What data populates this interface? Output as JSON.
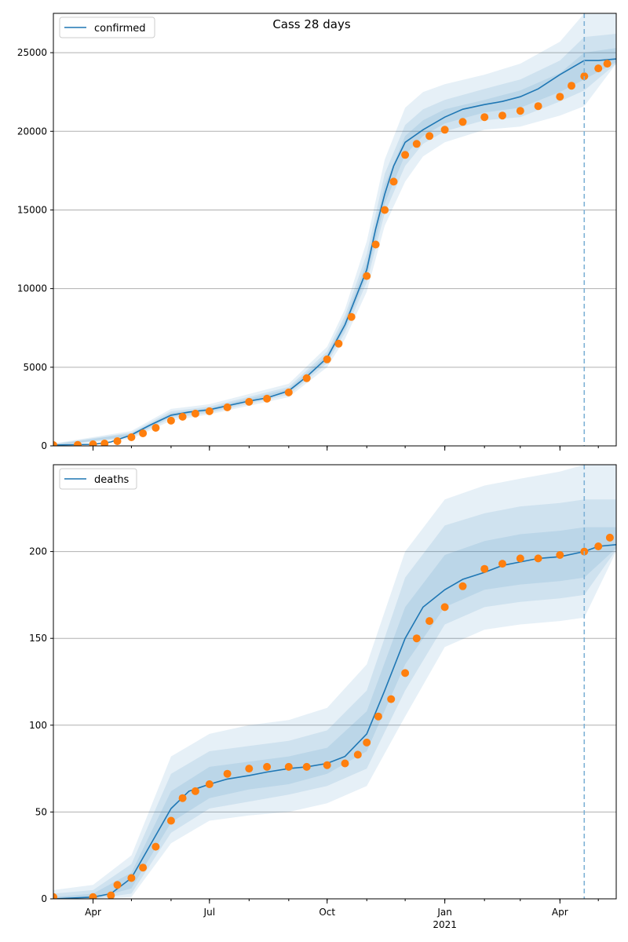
{
  "figure": {
    "title": "Cass 28 days"
  },
  "colors": {
    "model_line": "#1f77b4",
    "observed": "#ff7f0e",
    "band": "#1f77b4",
    "forecast_line": "#7fb2d6",
    "grid": "#b0b0b0"
  },
  "x_axis": {
    "start": "2020-03-01",
    "end": "2021-05-15",
    "ticks": [
      {
        "date": "2020-04-01",
        "label": "Apr",
        "sub": ""
      },
      {
        "date": "2020-07-01",
        "label": "Jul",
        "sub": ""
      },
      {
        "date": "2020-10-01",
        "label": "Oct",
        "sub": ""
      },
      {
        "date": "2021-01-01",
        "label": "Jan",
        "sub": "2021"
      },
      {
        "date": "2021-04-01",
        "label": "Apr",
        "sub": ""
      }
    ],
    "forecast_start": "2021-04-20"
  },
  "chart_data": [
    {
      "type": "line",
      "legend": "confirmed",
      "legend_loc": "upper left",
      "ylim": [
        0,
        27500
      ],
      "yticks": [
        0,
        5000,
        10000,
        15000,
        20000,
        25000
      ],
      "grid": "y",
      "model": {
        "x": [
          "2020-03-01",
          "2020-04-01",
          "2020-04-15",
          "2020-05-01",
          "2020-05-15",
          "2020-06-01",
          "2020-06-15",
          "2020-07-01",
          "2020-07-15",
          "2020-08-01",
          "2020-08-15",
          "2020-09-01",
          "2020-09-15",
          "2020-10-01",
          "2020-10-15",
          "2020-11-01",
          "2020-11-08",
          "2020-11-15",
          "2020-11-22",
          "2020-12-01",
          "2020-12-15",
          "2021-01-01",
          "2021-01-15",
          "2021-02-01",
          "2021-02-15",
          "2021-03-01",
          "2021-03-15",
          "2021-04-01",
          "2021-04-20"
        ],
        "y": [
          50,
          100,
          250,
          700,
          1300,
          1950,
          2150,
          2300,
          2550,
          2850,
          3050,
          3500,
          4400,
          5600,
          7700,
          11200,
          13800,
          16000,
          17800,
          19300,
          20100,
          20900,
          21400,
          21700,
          21900,
          22200,
          22700,
          23600,
          24500
        ]
      },
      "forecast": {
        "x": [
          "2021-04-20",
          "2021-05-01",
          "2021-05-15"
        ],
        "y": [
          24500,
          24500,
          24600
        ]
      },
      "bands": [
        {
          "level": "outer",
          "x": [
            "2020-03-01",
            "2020-05-01",
            "2020-06-01",
            "2020-07-01",
            "2020-09-01",
            "2020-10-01",
            "2020-10-15",
            "2020-11-01",
            "2020-11-15",
            "2020-12-01",
            "2020-12-15",
            "2021-01-01",
            "2021-02-01",
            "2021-03-01",
            "2021-04-01",
            "2021-04-20",
            "2021-05-15"
          ],
          "lower": [
            0,
            450,
            1600,
            2000,
            3100,
            5000,
            6800,
            9800,
            14000,
            16800,
            18400,
            19300,
            20100,
            20300,
            21000,
            21600,
            24300
          ],
          "upper": [
            150,
            950,
            2350,
            2650,
            3950,
            6300,
            8700,
            13000,
            18200,
            21500,
            22500,
            23000,
            23600,
            24300,
            25700,
            27500,
            27500
          ]
        },
        {
          "level": "middle",
          "x": [
            "2020-03-01",
            "2020-05-01",
            "2020-06-01",
            "2020-07-01",
            "2020-09-01",
            "2020-10-01",
            "2020-10-15",
            "2020-11-01",
            "2020-11-15",
            "2020-12-01",
            "2020-12-15",
            "2021-01-01",
            "2021-02-01",
            "2021-03-01",
            "2021-04-01",
            "2021-04-20",
            "2021-05-15"
          ],
          "lower": [
            0,
            550,
            1750,
            2100,
            3250,
            5250,
            7200,
            10400,
            14800,
            17800,
            19200,
            20000,
            20700,
            20900,
            21900,
            22600,
            24300
          ],
          "upper": [
            120,
            850,
            2200,
            2500,
            3750,
            6000,
            8300,
            12200,
            17300,
            20400,
            21400,
            22000,
            22700,
            23300,
            24500,
            26000,
            26200
          ]
        },
        {
          "level": "inner",
          "x": [
            "2020-03-01",
            "2020-05-01",
            "2020-06-01",
            "2020-07-01",
            "2020-09-01",
            "2020-10-01",
            "2020-10-15",
            "2020-11-01",
            "2020-11-15",
            "2020-12-01",
            "2020-12-15",
            "2021-01-01",
            "2021-02-01",
            "2021-03-01",
            "2021-04-01",
            "2021-04-20",
            "2021-05-15"
          ],
          "lower": [
            20,
            620,
            1850,
            2200,
            3380,
            5420,
            7450,
            10800,
            15400,
            18500,
            19700,
            20500,
            21200,
            21500,
            22500,
            23300,
            24400
          ],
          "upper": [
            90,
            780,
            2080,
            2400,
            3620,
            5800,
            8000,
            11700,
            16600,
            19700,
            20700,
            21400,
            22000,
            22600,
            23700,
            25000,
            25300
          ]
        }
      ],
      "observed": {
        "x": [
          "2020-03-01",
          "2020-03-20",
          "2020-04-01",
          "2020-04-10",
          "2020-04-20",
          "2020-05-01",
          "2020-05-10",
          "2020-05-20",
          "2020-06-01",
          "2020-06-10",
          "2020-06-20",
          "2020-07-01",
          "2020-07-15",
          "2020-08-01",
          "2020-08-15",
          "2020-09-01",
          "2020-09-15",
          "2020-10-01",
          "2020-10-10",
          "2020-10-20",
          "2020-11-01",
          "2020-11-08",
          "2020-11-15",
          "2020-11-22",
          "2020-12-01",
          "2020-12-10",
          "2020-12-20",
          "2021-01-01",
          "2021-01-15",
          "2021-02-01",
          "2021-02-15",
          "2021-03-01",
          "2021-03-15",
          "2021-04-01",
          "2021-04-10",
          "2021-04-20",
          "2021-05-01",
          "2021-05-08"
        ],
        "y": [
          50,
          60,
          100,
          150,
          300,
          550,
          800,
          1150,
          1600,
          1850,
          2050,
          2200,
          2450,
          2800,
          3000,
          3400,
          4300,
          5500,
          6500,
          8200,
          10800,
          12800,
          15000,
          16800,
          18500,
          19200,
          19700,
          20100,
          20600,
          20900,
          21000,
          21300,
          21600,
          22200,
          22900,
          23500,
          24000,
          24300
        ]
      }
    },
    {
      "type": "line",
      "legend": "deaths",
      "legend_loc": "upper left",
      "ylim": [
        0,
        250
      ],
      "yticks": [
        0,
        50,
        100,
        150,
        200
      ],
      "grid": "y",
      "model": {
        "x": [
          "2020-03-01",
          "2020-04-01",
          "2020-04-15",
          "2020-05-01",
          "2020-05-15",
          "2020-06-01",
          "2020-06-15",
          "2020-07-01",
          "2020-07-15",
          "2020-08-01",
          "2020-08-15",
          "2020-09-01",
          "2020-09-15",
          "2020-10-01",
          "2020-10-15",
          "2020-11-01",
          "2020-11-15",
          "2020-12-01",
          "2020-12-15",
          "2021-01-01",
          "2021-01-15",
          "2021-02-01",
          "2021-02-15",
          "2021-03-01",
          "2021-03-15",
          "2021-04-01",
          "2021-04-20"
        ],
        "y": [
          0,
          1,
          3,
          12,
          30,
          52,
          62,
          66,
          69,
          71,
          73,
          75,
          76,
          78,
          82,
          95,
          120,
          150,
          168,
          178,
          184,
          188,
          192,
          194,
          196,
          197,
          200
        ]
      },
      "forecast": {
        "x": [
          "2021-04-20",
          "2021-05-01",
          "2021-05-15"
        ],
        "y": [
          200,
          203,
          204
        ]
      },
      "bands": [
        {
          "level": "outer",
          "x": [
            "2020-03-01",
            "2020-04-01",
            "2020-05-01",
            "2020-06-01",
            "2020-07-01",
            "2020-08-01",
            "2020-09-01",
            "2020-10-01",
            "2020-11-01",
            "2020-12-01",
            "2021-01-01",
            "2021-02-01",
            "2021-03-01",
            "2021-04-01",
            "2021-04-20",
            "2021-05-15"
          ],
          "lower": [
            0,
            0,
            1,
            32,
            45,
            48,
            50,
            55,
            65,
            105,
            145,
            155,
            158,
            160,
            162,
            200
          ],
          "upper": [
            5,
            8,
            25,
            82,
            95,
            100,
            103,
            110,
            135,
            200,
            230,
            238,
            242,
            246,
            250,
            250
          ]
        },
        {
          "level": "middle",
          "x": [
            "2020-03-01",
            "2020-04-01",
            "2020-05-01",
            "2020-06-01",
            "2020-07-01",
            "2020-08-01",
            "2020-09-01",
            "2020-10-01",
            "2020-11-01",
            "2020-12-01",
            "2021-01-01",
            "2021-02-01",
            "2021-03-01",
            "2021-04-01",
            "2021-04-20",
            "2021-05-15"
          ],
          "lower": [
            0,
            0,
            3,
            38,
            52,
            56,
            60,
            65,
            75,
            120,
            158,
            168,
            171,
            173,
            175,
            201
          ],
          "upper": [
            3,
            5,
            20,
            72,
            85,
            88,
            91,
            97,
            120,
            185,
            215,
            222,
            226,
            228,
            230,
            230
          ]
        },
        {
          "level": "inner",
          "x": [
            "2020-03-01",
            "2020-04-01",
            "2020-05-01",
            "2020-06-01",
            "2020-07-01",
            "2020-08-01",
            "2020-09-01",
            "2020-10-01",
            "2020-11-01",
            "2020-12-01",
            "2021-01-01",
            "2021-02-01",
            "2021-03-01",
            "2021-04-01",
            "2021-04-20",
            "2021-05-15"
          ],
          "lower": [
            0,
            0,
            6,
            44,
            58,
            63,
            66,
            72,
            85,
            135,
            168,
            178,
            181,
            183,
            185,
            202
          ],
          "upper": [
            1,
            3,
            15,
            62,
            76,
            79,
            82,
            87,
            108,
            168,
            198,
            206,
            210,
            212,
            214,
            214
          ]
        }
      ],
      "observed": {
        "x": [
          "2020-03-01",
          "2020-04-01",
          "2020-04-15",
          "2020-04-20",
          "2020-05-01",
          "2020-05-10",
          "2020-05-20",
          "2020-06-01",
          "2020-06-10",
          "2020-06-20",
          "2020-07-01",
          "2020-07-15",
          "2020-08-01",
          "2020-08-15",
          "2020-09-01",
          "2020-09-15",
          "2020-10-01",
          "2020-10-15",
          "2020-10-25",
          "2020-11-01",
          "2020-11-10",
          "2020-11-20",
          "2020-12-01",
          "2020-12-10",
          "2020-12-20",
          "2021-01-01",
          "2021-01-15",
          "2021-02-01",
          "2021-02-15",
          "2021-03-01",
          "2021-03-15",
          "2021-04-01",
          "2021-04-20",
          "2021-05-01",
          "2021-05-10"
        ],
        "y": [
          1,
          1,
          2,
          8,
          12,
          18,
          30,
          45,
          58,
          62,
          66,
          72,
          75,
          76,
          76,
          76,
          77,
          78,
          83,
          90,
          105,
          115,
          130,
          150,
          160,
          168,
          180,
          190,
          193,
          196,
          196,
          198,
          200,
          203,
          208
        ]
      }
    }
  ]
}
